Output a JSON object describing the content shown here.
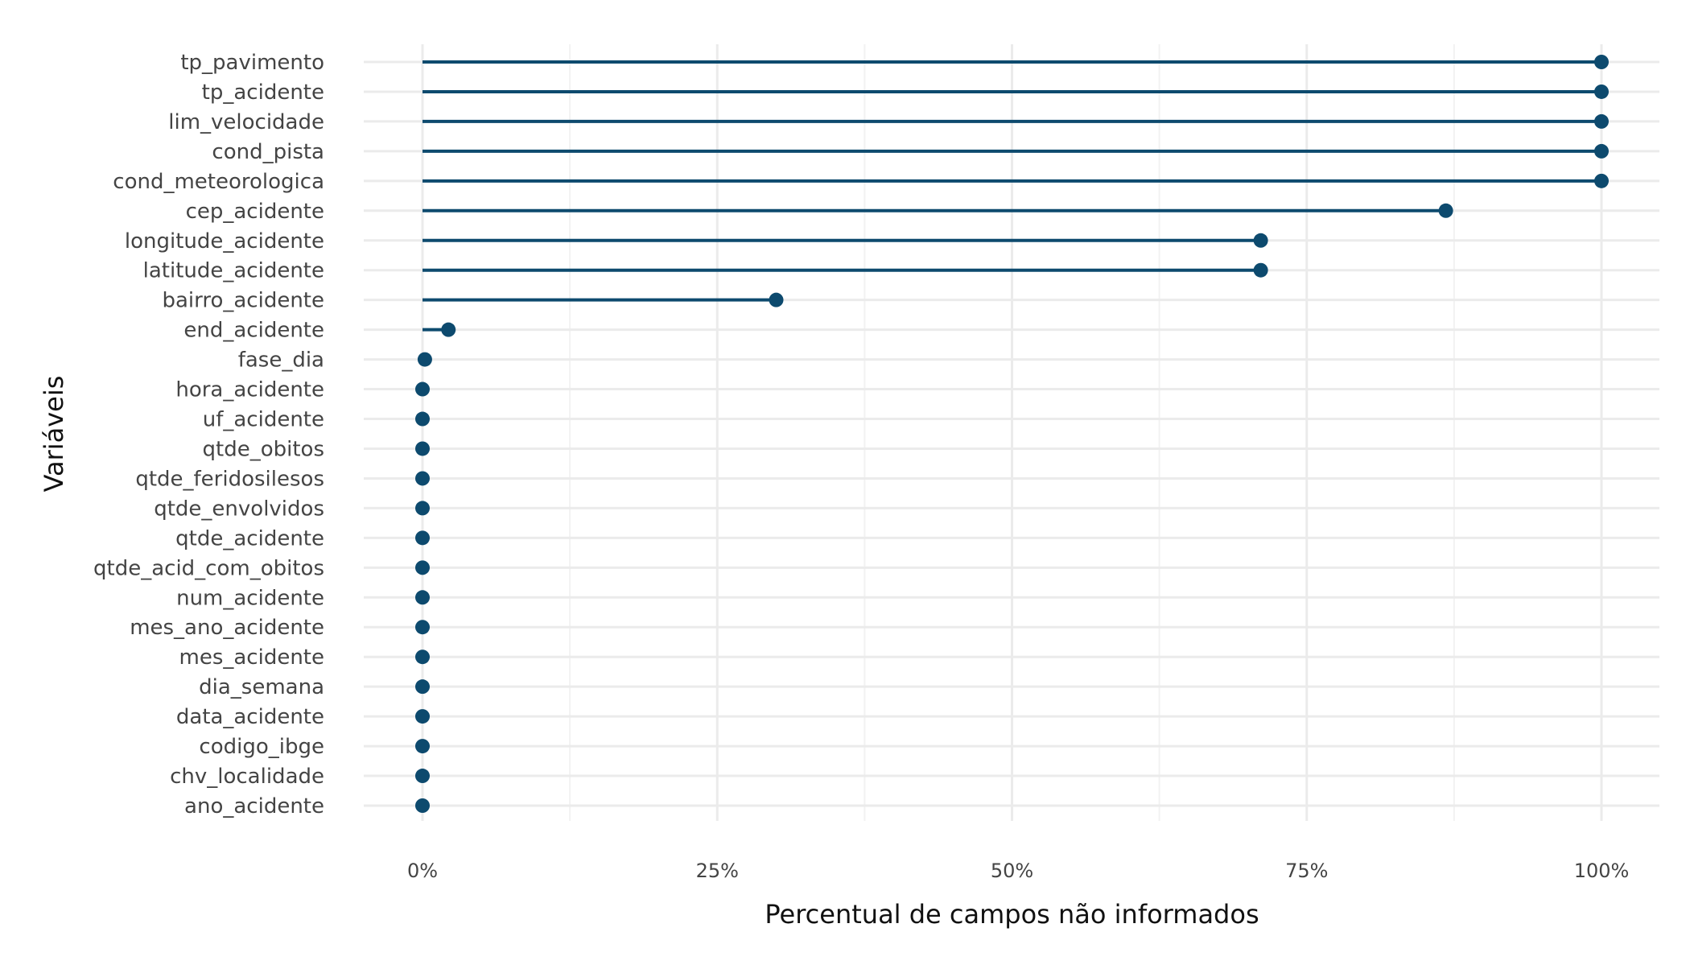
{
  "chart_data": {
    "type": "lollipop",
    "title": "",
    "xlabel": "Percentual de campos não informados",
    "ylabel": "Variáveis",
    "xlim": [
      -0.05,
      1.05
    ],
    "x_ticks": [
      0,
      0.25,
      0.5,
      0.75,
      1.0
    ],
    "x_tick_labels": [
      "0%",
      "25%",
      "50%",
      "75%",
      "100%"
    ],
    "grid": true,
    "color": "#0d4a6e",
    "categories": [
      "tp_pavimento",
      "tp_acidente",
      "lim_velocidade",
      "cond_pista",
      "cond_meteorologica",
      "cep_acidente",
      "longitude_acidente",
      "latitude_acidente",
      "bairro_acidente",
      "end_acidente",
      "fase_dia",
      "hora_acidente",
      "uf_acidente",
      "qtde_obitos",
      "qtde_feridosilesos",
      "qtde_envolvidos",
      "qtde_acidente",
      "qtde_acid_com_obitos",
      "num_acidente",
      "mes_ano_acidente",
      "mes_acidente",
      "dia_semana",
      "data_acidente",
      "codigo_ibge",
      "chv_localidade",
      "ano_acidente"
    ],
    "values": [
      1.0,
      1.0,
      1.0,
      1.0,
      1.0,
      0.868,
      0.711,
      0.711,
      0.3,
      0.022,
      0.002,
      0,
      0,
      0,
      0,
      0,
      0,
      0,
      0,
      0,
      0,
      0,
      0,
      0,
      0,
      0
    ]
  }
}
